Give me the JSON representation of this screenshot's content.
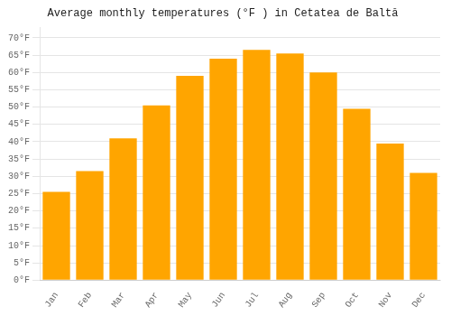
{
  "chart_data": {
    "type": "bar",
    "title": "Average monthly temperatures (°F ) in Cetatea de Baltă",
    "categories": [
      "Jan",
      "Feb",
      "Mar",
      "Apr",
      "May",
      "Jun",
      "Jul",
      "Aug",
      "Sep",
      "Oct",
      "Nov",
      "Dec"
    ],
    "values": [
      25.5,
      31.5,
      41.0,
      50.5,
      59.0,
      64.0,
      66.5,
      65.5,
      60.0,
      49.5,
      39.5,
      31.0
    ],
    "color": "#FFA500",
    "ylim": [
      0,
      73
    ],
    "yticks": [
      {
        "value": 0,
        "label": "0°F"
      },
      {
        "value": 5,
        "label": "5°F"
      },
      {
        "value": 10,
        "label": "10°F"
      },
      {
        "value": 15,
        "label": "15°F"
      },
      {
        "value": 20,
        "label": "20°F"
      },
      {
        "value": 25,
        "label": "25°F"
      },
      {
        "value": 30,
        "label": "30°F"
      },
      {
        "value": 35,
        "label": "35°F"
      },
      {
        "value": 40,
        "label": "40°F"
      },
      {
        "value": 45,
        "label": "45°F"
      },
      {
        "value": 50,
        "label": "50°F"
      },
      {
        "value": 55,
        "label": "55°F"
      },
      {
        "value": 60,
        "label": "60°F"
      },
      {
        "value": 65,
        "label": "65°F"
      },
      {
        "value": 70,
        "label": "70°F"
      }
    ],
    "grid": true
  }
}
